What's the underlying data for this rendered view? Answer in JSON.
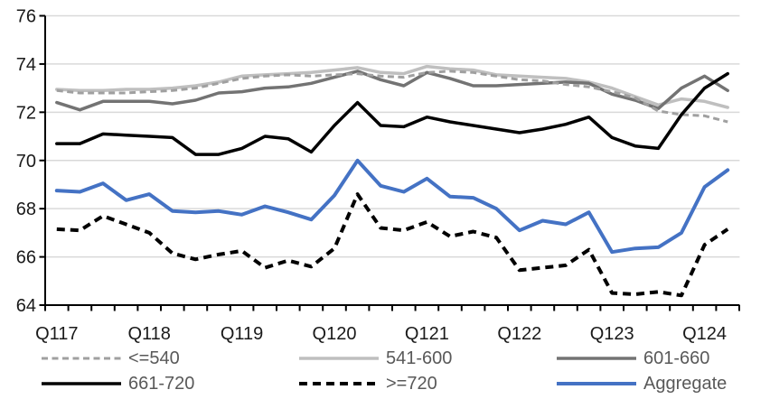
{
  "chart_data": {
    "type": "line",
    "title": "",
    "n_points": 30,
    "x_tick_labels": [
      "Q117",
      "Q118",
      "Q119",
      "Q120",
      "Q121",
      "Q122",
      "Q123",
      "Q124"
    ],
    "x_label_point_indices": [
      0,
      4,
      8,
      12,
      16,
      20,
      24,
      28
    ],
    "y_ticks": [
      64,
      66,
      68,
      70,
      72,
      74,
      76
    ],
    "ylim": [
      64,
      76
    ],
    "grid": true,
    "legend_position": "bottom",
    "colors": {
      "gridline": "#d9d9d9",
      "axis": "#000000",
      "axis_text": "#1a1a1a",
      "legend_text": "#595959"
    },
    "series": [
      {
        "name": "<=540",
        "color": "#a0a0a0",
        "dash": "dashed",
        "width": 3,
        "values": [
          72.9,
          72.8,
          72.8,
          72.8,
          72.85,
          72.9,
          73.0,
          73.2,
          73.4,
          73.5,
          73.55,
          73.5,
          73.55,
          73.6,
          73.5,
          73.45,
          73.65,
          73.7,
          73.65,
          73.5,
          73.35,
          73.3,
          73.15,
          73.05,
          72.85,
          72.6,
          72.05,
          71.9,
          71.85,
          71.6
        ]
      },
      {
        "name": "541-600",
        "color": "#bfbfbf",
        "dash": "solid",
        "width": 3.5,
        "values": [
          72.95,
          72.9,
          72.9,
          72.95,
          72.95,
          73.0,
          73.1,
          73.25,
          73.5,
          73.55,
          73.6,
          73.65,
          73.75,
          73.85,
          73.65,
          73.6,
          73.9,
          73.8,
          73.75,
          73.55,
          73.5,
          73.45,
          73.4,
          73.25,
          73.0,
          72.65,
          72.3,
          72.55,
          72.45,
          72.2
        ]
      },
      {
        "name": "601-660",
        "color": "#737373",
        "dash": "solid",
        "width": 3.5,
        "values": [
          72.4,
          72.1,
          72.45,
          72.45,
          72.45,
          72.35,
          72.5,
          72.8,
          72.85,
          73.0,
          73.05,
          73.2,
          73.45,
          73.7,
          73.35,
          73.1,
          73.65,
          73.4,
          73.1,
          73.1,
          73.15,
          73.2,
          73.25,
          73.2,
          72.75,
          72.5,
          72.15,
          73.0,
          73.5,
          72.9
        ]
      },
      {
        "name": "661-720",
        "color": "#000000",
        "dash": "solid",
        "width": 3.5,
        "values": [
          70.7,
          70.7,
          71.1,
          71.05,
          71.0,
          70.95,
          70.25,
          70.25,
          70.5,
          71.0,
          70.9,
          70.35,
          71.45,
          72.4,
          71.45,
          71.4,
          71.8,
          71.6,
          71.45,
          71.3,
          71.15,
          71.3,
          71.5,
          71.8,
          70.95,
          70.6,
          70.5,
          71.9,
          73.0,
          73.6
        ]
      },
      {
        "name": ">=720",
        "color": "#000000",
        "dash": "dashed",
        "width": 4,
        "values": [
          67.15,
          67.1,
          67.7,
          67.35,
          67.0,
          66.15,
          65.9,
          66.1,
          66.25,
          65.55,
          65.85,
          65.6,
          66.35,
          68.6,
          67.2,
          67.1,
          67.45,
          66.85,
          67.05,
          66.8,
          65.45,
          65.55,
          65.65,
          66.3,
          64.5,
          64.45,
          64.55,
          64.4,
          66.5,
          67.15
        ]
      },
      {
        "name": "Aggregate",
        "color": "#4472c4",
        "dash": "solid",
        "width": 4,
        "values": [
          68.75,
          68.7,
          69.05,
          68.35,
          68.6,
          67.9,
          67.85,
          67.9,
          67.75,
          68.1,
          67.85,
          67.55,
          68.55,
          70.0,
          68.95,
          68.7,
          69.25,
          68.5,
          68.45,
          68.0,
          67.1,
          67.5,
          67.35,
          67.85,
          66.2,
          66.35,
          66.4,
          67.0,
          68.9,
          69.6
        ]
      }
    ],
    "draw_order": [
      "541-600",
      "601-660",
      "<=540",
      "661-720",
      ">=720",
      "Aggregate"
    ],
    "legend_labels": [
      "<=540",
      "541-600",
      "601-660",
      "661-720",
      ">=720",
      "Aggregate"
    ]
  }
}
